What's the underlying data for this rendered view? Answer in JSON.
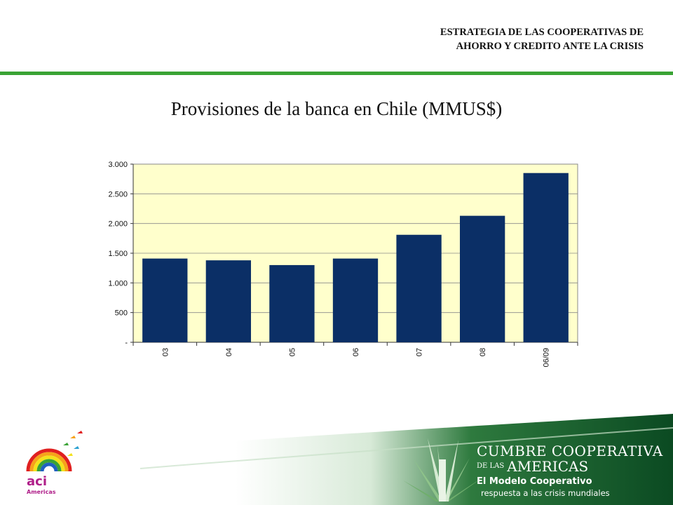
{
  "header": {
    "line1": "ESTRATEGIA DE LAS COOPERATIVAS DE",
    "line2": "AHORRO Y CREDITO ANTE LA CRISIS"
  },
  "colors": {
    "accent_green": "#3aa335",
    "bar": "#0b2f66",
    "plot_bg": "#ffffcc",
    "footer_green": "#0f5a2a"
  },
  "chart_data": {
    "type": "bar",
    "title": "Provisiones de la banca en Chile (MMUS$)",
    "categories": [
      "03",
      "04",
      "05",
      "06",
      "07",
      "08",
      "06/09"
    ],
    "values": [
      1410,
      1380,
      1300,
      1410,
      1810,
      2130,
      2850
    ],
    "ylim": [
      0,
      3000
    ],
    "yticks": [
      0,
      500,
      1000,
      1500,
      2000,
      2500,
      3000
    ],
    "ytick_labels": [
      "-",
      "500",
      "1.000",
      "1.500",
      "2.000",
      "2.500",
      "3.000"
    ],
    "grid": true,
    "legend": "none"
  },
  "footer": {
    "logo_text": "aci",
    "logo_sub": "Americas",
    "summit_line1": "CUMBRE COOPERATIVA",
    "summit_small": "DE LAS",
    "summit_line2": "AMERICAS",
    "summit_line3": "El Modelo Cooperativo",
    "summit_line4": "respuesta a las crisis mundiales"
  }
}
